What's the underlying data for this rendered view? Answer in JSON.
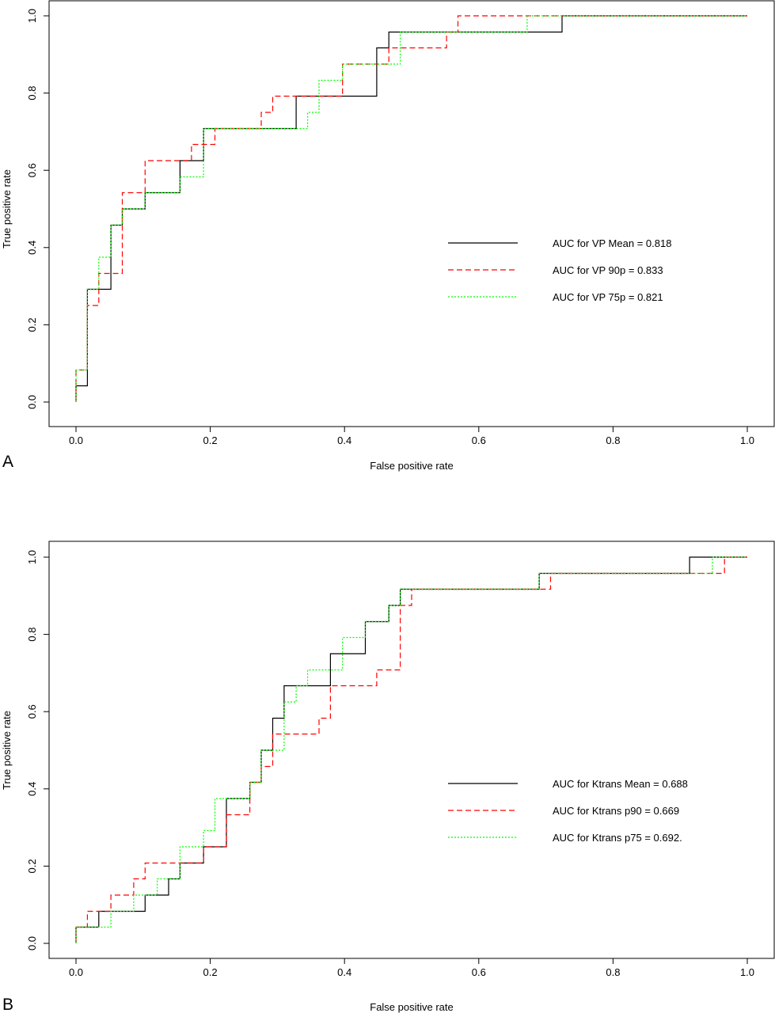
{
  "chart_data": [
    {
      "type": "line",
      "panel_label": "A",
      "xlabel": "False positive rate",
      "ylabel": "True positive rate",
      "xlim": [
        0,
        1
      ],
      "ylim": [
        0,
        1
      ],
      "xticks": [
        "0.0",
        "0.2",
        "0.4",
        "0.6",
        "0.8",
        "1.0"
      ],
      "yticks": [
        "0.0",
        "0.2",
        "0.4",
        "0.6",
        "0.8",
        "1.0"
      ],
      "grid": false,
      "legend_position": "center-right",
      "series": [
        {
          "name": "AUC for VP Mean = 0.818",
          "color": "#000000",
          "dash": "solid",
          "points": [
            [
              0,
              0
            ],
            [
              0,
              0.042
            ],
            [
              0.017,
              0.042
            ],
            [
              0.017,
              0.292
            ],
            [
              0.052,
              0.292
            ],
            [
              0.052,
              0.458
            ],
            [
              0.069,
              0.458
            ],
            [
              0.069,
              0.5
            ],
            [
              0.103,
              0.5
            ],
            [
              0.103,
              0.542
            ],
            [
              0.155,
              0.542
            ],
            [
              0.155,
              0.625
            ],
            [
              0.19,
              0.625
            ],
            [
              0.19,
              0.708
            ],
            [
              0.328,
              0.708
            ],
            [
              0.328,
              0.792
            ],
            [
              0.448,
              0.792
            ],
            [
              0.448,
              0.917
            ],
            [
              0.466,
              0.917
            ],
            [
              0.466,
              0.958
            ],
            [
              0.724,
              0.958
            ],
            [
              0.724,
              1.0
            ],
            [
              1.0,
              1.0
            ]
          ]
        },
        {
          "name": "AUC for VP 90p = 0.833",
          "color": "#ff0000",
          "dash": "dashed",
          "points": [
            [
              0,
              0
            ],
            [
              0,
              0.083
            ],
            [
              0.017,
              0.083
            ],
            [
              0.017,
              0.25
            ],
            [
              0.034,
              0.25
            ],
            [
              0.034,
              0.333
            ],
            [
              0.069,
              0.333
            ],
            [
              0.069,
              0.542
            ],
            [
              0.103,
              0.542
            ],
            [
              0.103,
              0.625
            ],
            [
              0.155,
              0.625
            ],
            [
              0.155,
              0.625
            ],
            [
              0.172,
              0.625
            ],
            [
              0.172,
              0.667
            ],
            [
              0.207,
              0.667
            ],
            [
              0.207,
              0.708
            ],
            [
              0.276,
              0.708
            ],
            [
              0.276,
              0.75
            ],
            [
              0.293,
              0.75
            ],
            [
              0.293,
              0.792
            ],
            [
              0.397,
              0.792
            ],
            [
              0.397,
              0.875
            ],
            [
              0.466,
              0.875
            ],
            [
              0.466,
              0.917
            ],
            [
              0.552,
              0.917
            ],
            [
              0.552,
              0.958
            ],
            [
              0.569,
              0.958
            ],
            [
              0.569,
              1.0
            ],
            [
              1.0,
              1.0
            ]
          ]
        },
        {
          "name": "AUC for VP 75p = 0.821",
          "color": "#00ff00",
          "dash": "dotted",
          "points": [
            [
              0,
              0
            ],
            [
              0,
              0.083
            ],
            [
              0.017,
              0.083
            ],
            [
              0.017,
              0.292
            ],
            [
              0.034,
              0.292
            ],
            [
              0.034,
              0.375
            ],
            [
              0.052,
              0.375
            ],
            [
              0.052,
              0.458
            ],
            [
              0.069,
              0.458
            ],
            [
              0.069,
              0.5
            ],
            [
              0.103,
              0.5
            ],
            [
              0.103,
              0.542
            ],
            [
              0.155,
              0.542
            ],
            [
              0.155,
              0.583
            ],
            [
              0.19,
              0.583
            ],
            [
              0.19,
              0.708
            ],
            [
              0.345,
              0.708
            ],
            [
              0.345,
              0.75
            ],
            [
              0.362,
              0.75
            ],
            [
              0.362,
              0.833
            ],
            [
              0.397,
              0.833
            ],
            [
              0.397,
              0.875
            ],
            [
              0.466,
              0.875
            ],
            [
              0.466,
              0.875
            ],
            [
              0.483,
              0.875
            ],
            [
              0.483,
              0.958
            ],
            [
              0.672,
              0.958
            ],
            [
              0.672,
              1.0
            ],
            [
              1.0,
              1.0
            ]
          ]
        }
      ]
    },
    {
      "type": "line",
      "panel_label": "B",
      "xlabel": "False positive rate",
      "ylabel": "True positive rate",
      "xlim": [
        0,
        1
      ],
      "ylim": [
        0,
        1
      ],
      "xticks": [
        "0.0",
        "0.2",
        "0.4",
        "0.6",
        "0.8",
        "1.0"
      ],
      "yticks": [
        "0.0",
        "0.2",
        "0.4",
        "0.6",
        "0.8",
        "1.0"
      ],
      "grid": false,
      "legend_position": "center-right",
      "series": [
        {
          "name": "AUC for Ktrans Mean = 0.688",
          "color": "#000000",
          "dash": "solid",
          "points": [
            [
              0,
              0
            ],
            [
              0,
              0.042
            ],
            [
              0.034,
              0.042
            ],
            [
              0.034,
              0.083
            ],
            [
              0.103,
              0.083
            ],
            [
              0.103,
              0.125
            ],
            [
              0.138,
              0.125
            ],
            [
              0.138,
              0.167
            ],
            [
              0.155,
              0.167
            ],
            [
              0.155,
              0.208
            ],
            [
              0.19,
              0.208
            ],
            [
              0.19,
              0.25
            ],
            [
              0.224,
              0.25
            ],
            [
              0.224,
              0.375
            ],
            [
              0.259,
              0.375
            ],
            [
              0.259,
              0.417
            ],
            [
              0.276,
              0.417
            ],
            [
              0.276,
              0.5
            ],
            [
              0.293,
              0.5
            ],
            [
              0.293,
              0.583
            ],
            [
              0.31,
              0.583
            ],
            [
              0.31,
              0.667
            ],
            [
              0.379,
              0.667
            ],
            [
              0.379,
              0.75
            ],
            [
              0.431,
              0.75
            ],
            [
              0.431,
              0.833
            ],
            [
              0.466,
              0.833
            ],
            [
              0.466,
              0.875
            ],
            [
              0.483,
              0.875
            ],
            [
              0.483,
              0.917
            ],
            [
              0.69,
              0.917
            ],
            [
              0.69,
              0.958
            ],
            [
              0.914,
              0.958
            ],
            [
              0.914,
              1.0
            ],
            [
              1.0,
              1.0
            ]
          ]
        },
        {
          "name": "AUC for Ktrans p90 = 0.669",
          "color": "#ff0000",
          "dash": "dashed",
          "points": [
            [
              0,
              0
            ],
            [
              0,
              0.042
            ],
            [
              0.017,
              0.042
            ],
            [
              0.017,
              0.083
            ],
            [
              0.052,
              0.083
            ],
            [
              0.052,
              0.125
            ],
            [
              0.086,
              0.125
            ],
            [
              0.086,
              0.167
            ],
            [
              0.103,
              0.167
            ],
            [
              0.103,
              0.208
            ],
            [
              0.19,
              0.208
            ],
            [
              0.19,
              0.25
            ],
            [
              0.224,
              0.25
            ],
            [
              0.224,
              0.333
            ],
            [
              0.259,
              0.333
            ],
            [
              0.259,
              0.417
            ],
            [
              0.276,
              0.417
            ],
            [
              0.276,
              0.458
            ],
            [
              0.293,
              0.458
            ],
            [
              0.293,
              0.542
            ],
            [
              0.362,
              0.542
            ],
            [
              0.362,
              0.583
            ],
            [
              0.379,
              0.583
            ],
            [
              0.379,
              0.667
            ],
            [
              0.448,
              0.667
            ],
            [
              0.448,
              0.708
            ],
            [
              0.483,
              0.708
            ],
            [
              0.483,
              0.875
            ],
            [
              0.5,
              0.875
            ],
            [
              0.5,
              0.917
            ],
            [
              0.707,
              0.917
            ],
            [
              0.707,
              0.958
            ],
            [
              0.966,
              0.958
            ],
            [
              0.966,
              1.0
            ],
            [
              1.0,
              1.0
            ]
          ]
        },
        {
          "name": "AUC for Ktrans p75 = 0.692.",
          "color": "#00ff00",
          "dash": "dotted",
          "points": [
            [
              0,
              0
            ],
            [
              0,
              0.042
            ],
            [
              0.052,
              0.042
            ],
            [
              0.052,
              0.083
            ],
            [
              0.086,
              0.083
            ],
            [
              0.086,
              0.125
            ],
            [
              0.121,
              0.125
            ],
            [
              0.121,
              0.167
            ],
            [
              0.155,
              0.167
            ],
            [
              0.155,
              0.25
            ],
            [
              0.19,
              0.25
            ],
            [
              0.19,
              0.292
            ],
            [
              0.207,
              0.292
            ],
            [
              0.207,
              0.375
            ],
            [
              0.259,
              0.375
            ],
            [
              0.259,
              0.417
            ],
            [
              0.276,
              0.417
            ],
            [
              0.276,
              0.5
            ],
            [
              0.31,
              0.5
            ],
            [
              0.31,
              0.625
            ],
            [
              0.328,
              0.625
            ],
            [
              0.328,
              0.667
            ],
            [
              0.345,
              0.667
            ],
            [
              0.345,
              0.708
            ],
            [
              0.397,
              0.708
            ],
            [
              0.397,
              0.792
            ],
            [
              0.431,
              0.792
            ],
            [
              0.431,
              0.833
            ],
            [
              0.466,
              0.833
            ],
            [
              0.466,
              0.875
            ],
            [
              0.483,
              0.875
            ],
            [
              0.483,
              0.917
            ],
            [
              0.69,
              0.917
            ],
            [
              0.69,
              0.958
            ],
            [
              0.948,
              0.958
            ],
            [
              0.948,
              1.0
            ],
            [
              1.0,
              1.0
            ]
          ]
        }
      ]
    }
  ]
}
